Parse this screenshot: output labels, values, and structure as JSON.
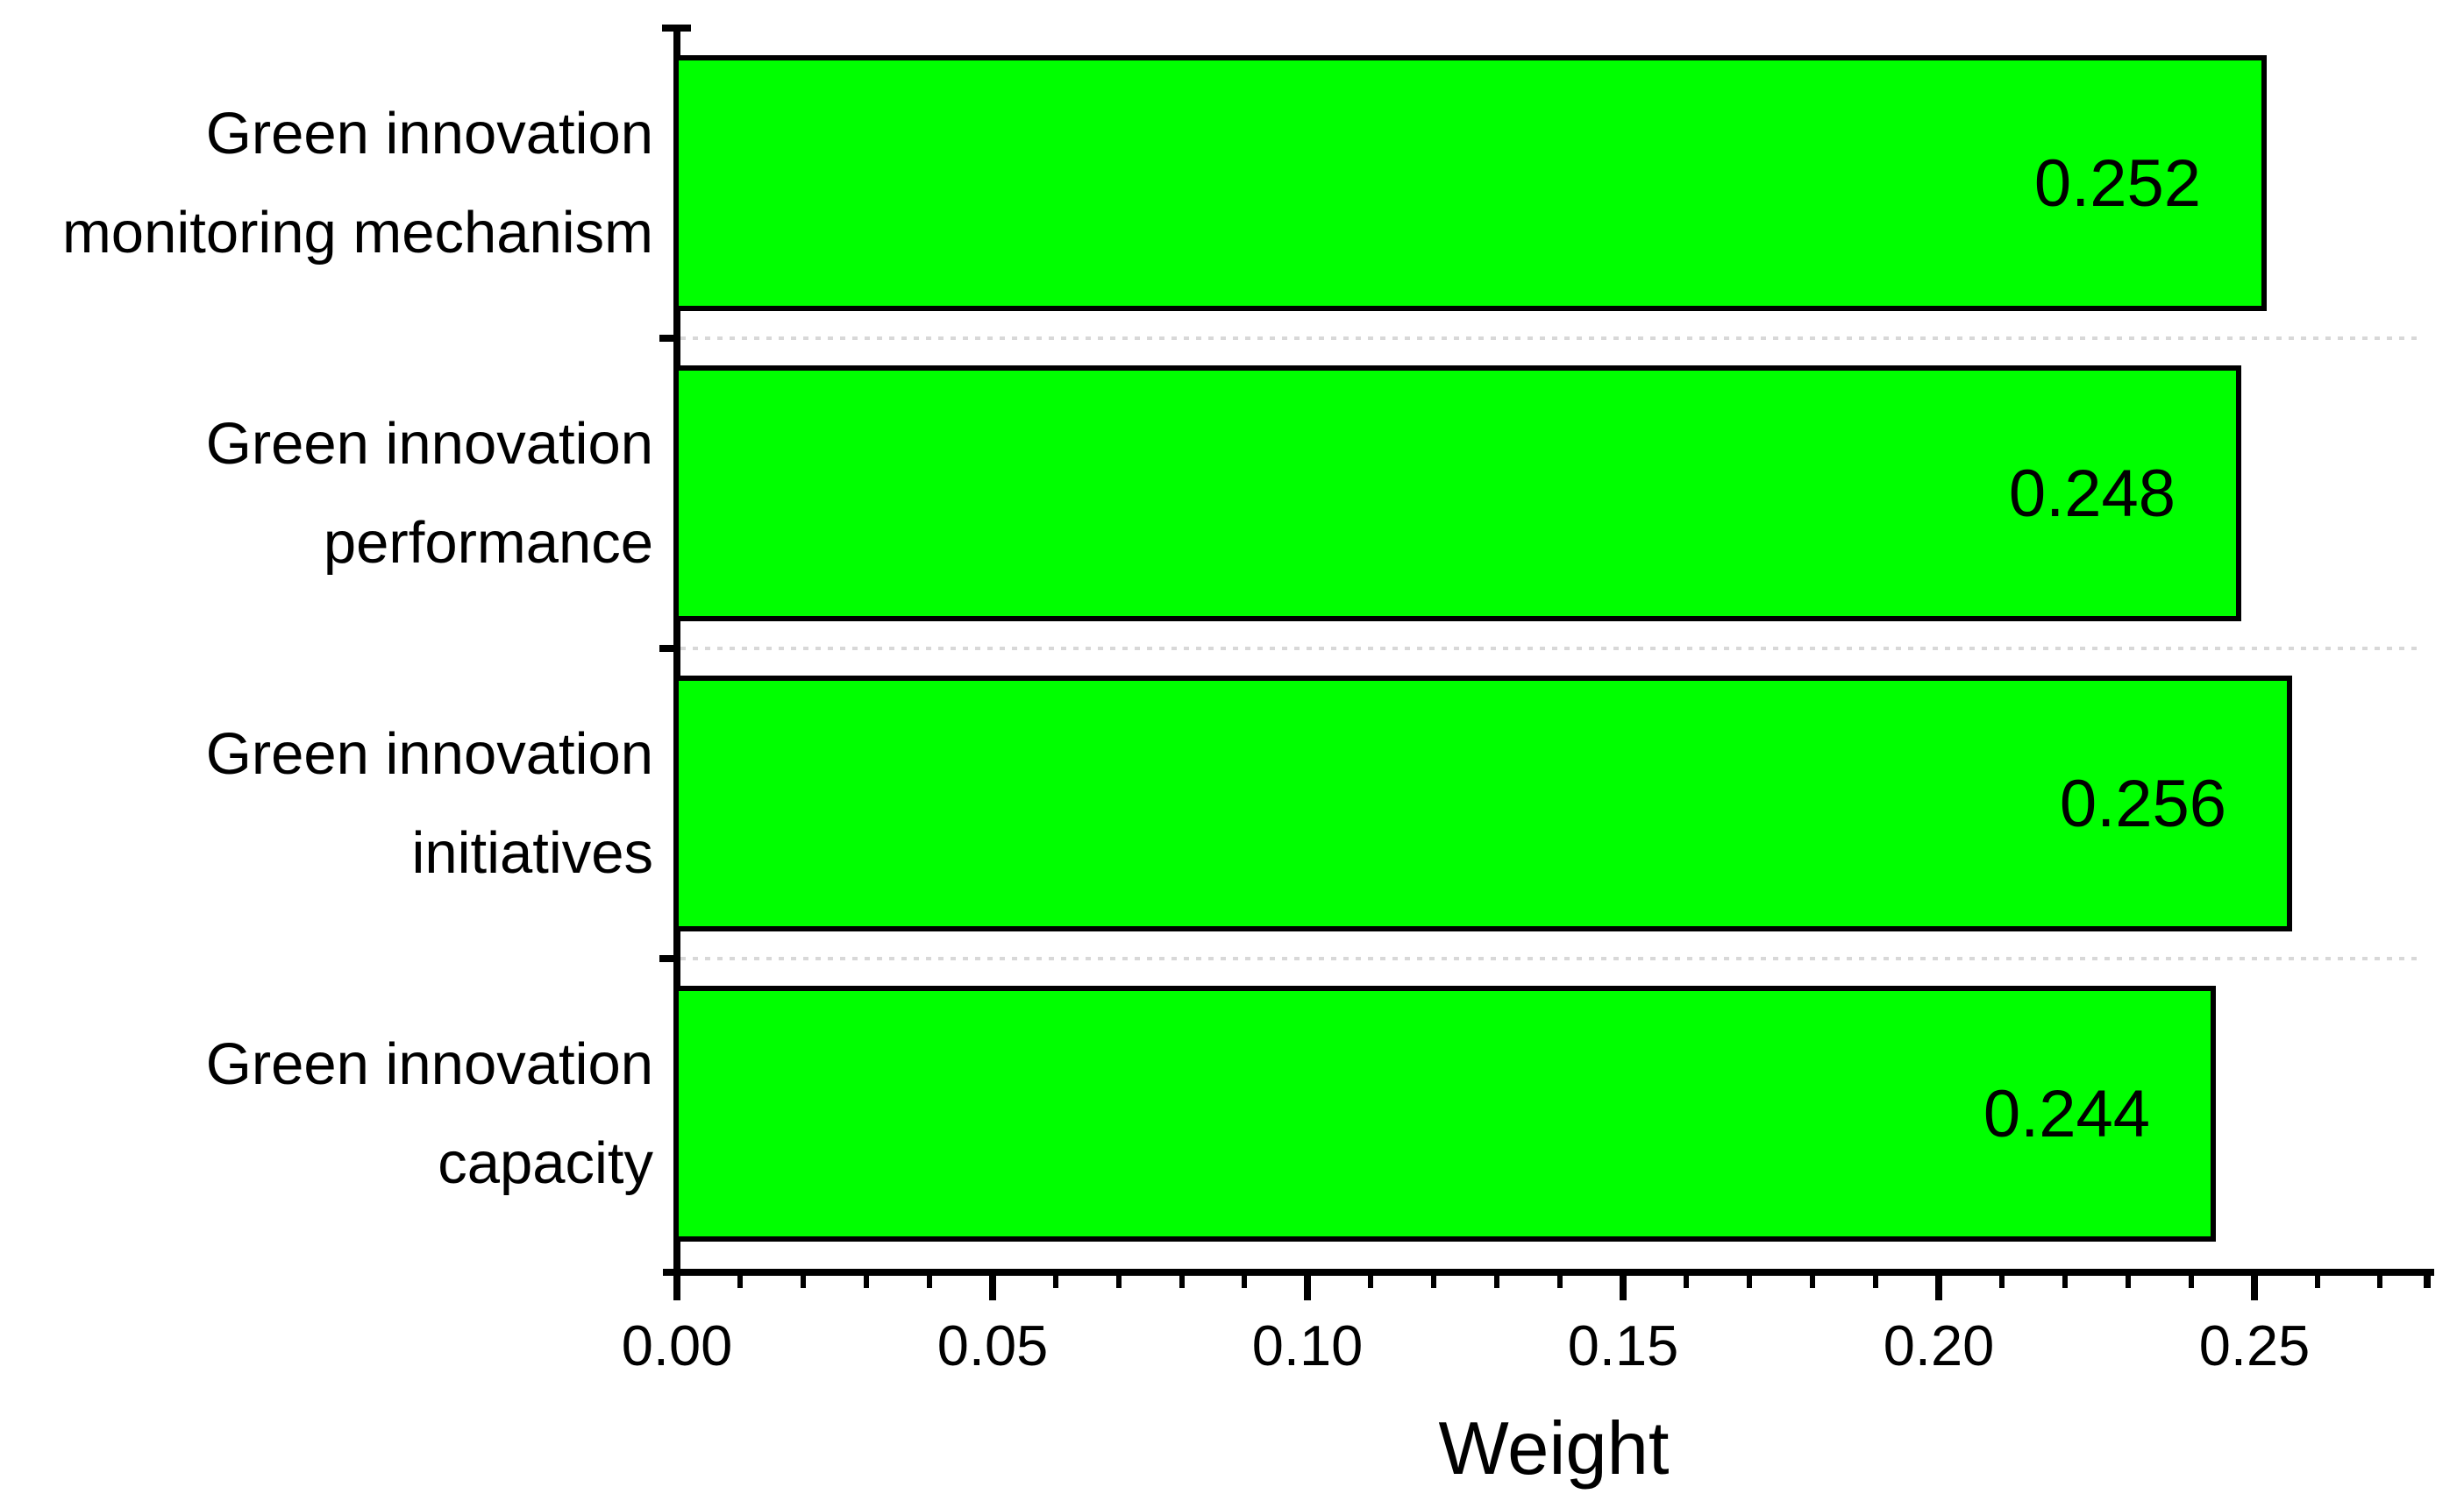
{
  "chart_data": {
    "type": "bar",
    "orientation": "horizontal",
    "title": "",
    "xlabel": "Weight",
    "ylabel": "",
    "categories": [
      "Green innovation monitoring mechanism",
      "Green innovation performance",
      "Green innovation initiatives",
      "Green innovation capacity"
    ],
    "category_lines": [
      [
        "Green innovation",
        "monitoring mechanism"
      ],
      [
        "Green innovation",
        "performance"
      ],
      [
        "Green innovation",
        "initiatives"
      ],
      [
        "Green innovation",
        "capacity"
      ]
    ],
    "values": [
      0.252,
      0.248,
      0.256,
      0.244
    ],
    "value_labels": [
      "0.252",
      "0.248",
      "0.256",
      "0.244"
    ],
    "xlim": [
      0,
      0.278
    ],
    "x_major_ticks": [
      0,
      0.05,
      0.1,
      0.15,
      0.2,
      0.25
    ],
    "x_major_tick_labels": [
      "0.00",
      "0.05",
      "0.10",
      "0.15",
      "0.20",
      "0.25"
    ],
    "x_minor_tick_step": 0.01,
    "x_minor_tick_max": 0.27,
    "grid": "horizontal dashed separators between category bands",
    "legend": "none",
    "colors": {
      "bar_fill": "#00ff00",
      "bar_border": "#000000",
      "grid": "#d8d8d8",
      "axis": "#000000",
      "background": "#ffffff",
      "text": "#000000"
    }
  }
}
